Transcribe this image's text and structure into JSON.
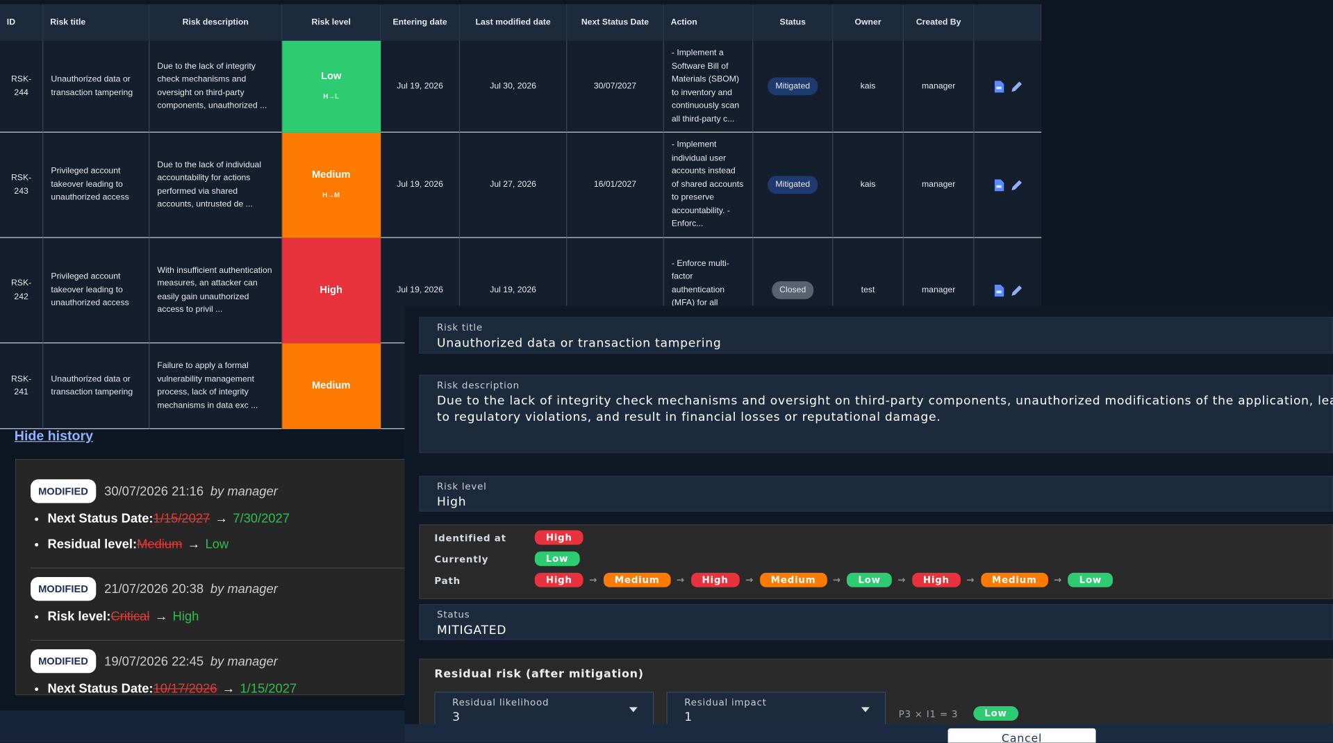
{
  "arrow": "→",
  "table": {
    "headers": [
      "ID",
      "Risk title",
      "Risk description",
      "Risk level",
      "Entering date",
      "Last modified date",
      "Next Status Date",
      "Action",
      "Status",
      "Owner",
      "Created By"
    ],
    "rows": [
      {
        "id": "RSK-244",
        "title": "Unauthorized data or transaction tampering",
        "description": "Due to the lack of integrity check mechanisms and oversight on third-party components, unauthorized ...",
        "level": "Low",
        "level_path": "H→L",
        "entering": "Jul 19, 2026",
        "modified": "Jul 30, 2026",
        "next_status": "30/07/2027",
        "action": "- Implement a Software Bill of Materials (SBOM) to inventory and continuously scan all third-party c...",
        "status": "Mitigated",
        "owner": "kais",
        "created_by": "manager"
      },
      {
        "id": "RSK-243",
        "title": "Privileged account takeover leading to unauthorized access",
        "description": "Due to the lack of individual accountability for actions performed via shared accounts, untrusted de ...",
        "level": "Medium",
        "level_path": "H→M",
        "entering": "Jul 19, 2026",
        "modified": "Jul 27, 2026",
        "next_status": "16/01/2027",
        "action": "- Implement individual user accounts instead of shared accounts to preserve accountability. - Enforc...",
        "status": "Mitigated",
        "owner": "kais",
        "created_by": "manager"
      },
      {
        "id": "RSK-242",
        "title": "Privileged account takeover leading to unauthorized access",
        "description": "With insufficient authentication measures, an attacker can easily gain unauthorized access to privil ...",
        "level": "High",
        "entering": "Jul 19, 2026",
        "modified": "Jul 19, 2026",
        "action": "- Enforce multi-factor authentication (MFA) for all privileged accounts",
        "status": "Closed",
        "owner": "test",
        "created_by": "manager"
      },
      {
        "id": "RSK-241",
        "title": "Unauthorized data or transaction tampering",
        "description": "Failure to apply a formal vulnerability management process, lack of integrity mechanisms in data exc ...",
        "level": "Medium"
      }
    ]
  },
  "history": {
    "toggle": "Hide history",
    "entries": [
      {
        "badge": "MODIFIED",
        "date": "30/07/2026 21:16",
        "by": "by manager",
        "changes": [
          {
            "field": "Next Status Date:",
            "old": "1/15/2027",
            "new": "7/30/2027"
          },
          {
            "field": "Residual level:",
            "old": "Medium",
            "new": "Low"
          }
        ]
      },
      {
        "badge": "MODIFIED",
        "date": "21/07/2026 20:38",
        "by": "by manager",
        "changes": [
          {
            "field": "Risk level:",
            "old": "Critical",
            "new": "High"
          }
        ]
      },
      {
        "badge": "MODIFIED",
        "date": "19/07/2026 22:45",
        "by": "by manager",
        "changes": [
          {
            "field": "Next Status Date:",
            "old": "10/17/2026",
            "new": "1/15/2027"
          }
        ]
      }
    ]
  },
  "panel": {
    "risk_title": {
      "label": "Risk title",
      "value": "Unauthorized data or transaction tampering"
    },
    "risk_description": {
      "label": "Risk description",
      "value": "Due to the lack of integrity check mechanisms and oversight on third-party components, unauthorized modifications of the application, lead to regulatory violations, and result in financial losses or reputational damage."
    },
    "risk_level": {
      "label": "Risk level",
      "value": "High"
    },
    "levels": {
      "identified": {
        "label": "Identified at",
        "value": "High"
      },
      "currently": {
        "label": "Currently",
        "value": "Low"
      },
      "path": {
        "label": "Path",
        "values": [
          "High",
          "Medium",
          "High",
          "Medium",
          "Low",
          "High",
          "Medium",
          "Low"
        ]
      }
    },
    "status": {
      "label": "Status",
      "value": "MITIGATED"
    },
    "residual": {
      "title": "Residual risk (after mitigation)",
      "likelihood": {
        "label": "Residual likelihood",
        "value": "3"
      },
      "impact": {
        "label": "Residual impact",
        "value": "1"
      },
      "formula": "P3 × I1 = 3",
      "result": "Low"
    },
    "cancel": "Cancel"
  }
}
